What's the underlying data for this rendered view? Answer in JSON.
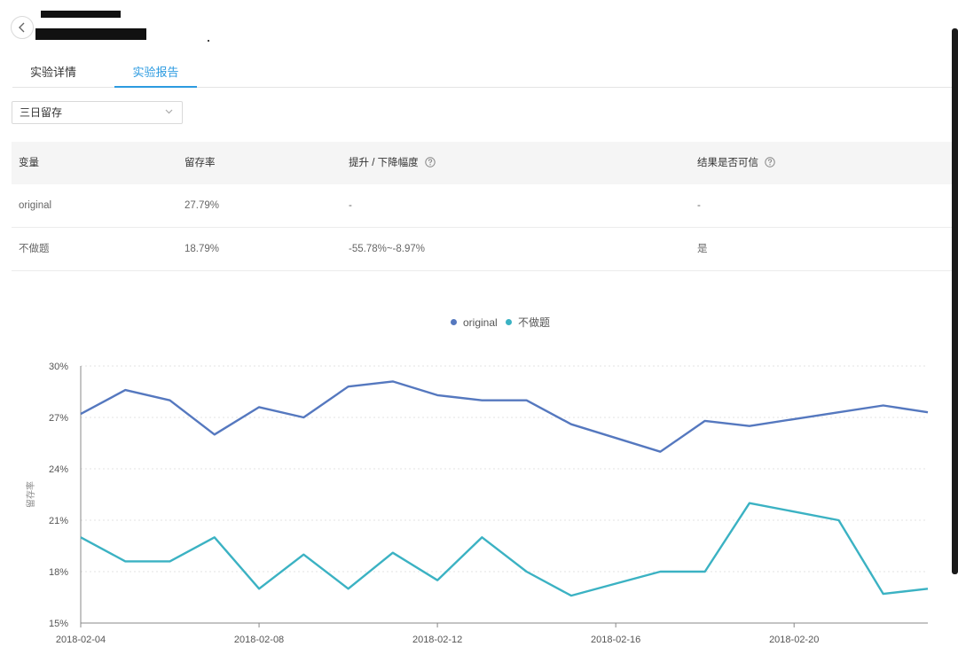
{
  "tabs": [
    {
      "label": "实验详情",
      "active": false
    },
    {
      "label": "实验报告",
      "active": true
    }
  ],
  "metric_select": {
    "value": "三日留存"
  },
  "table": {
    "headers": [
      "变量",
      "留存率",
      "提升 / 下降幅度",
      "结果是否可信"
    ],
    "rows": [
      [
        "original",
        "27.79%",
        "-",
        "-"
      ],
      [
        "不做题",
        "18.79%",
        "-55.78%~-8.97%",
        "是"
      ]
    ]
  },
  "colors": {
    "original": "#5578bf",
    "variant": "#3bb2c3",
    "accent": "#2d9be0"
  },
  "chart_data": {
    "type": "line",
    "ylabel": "留存率",
    "ylim": [
      15,
      30
    ],
    "yticks": [
      "15%",
      "18%",
      "21%",
      "24%",
      "27%",
      "30%"
    ],
    "xticks": [
      "2018-02-04",
      "2018-02-08",
      "2018-02-12",
      "2018-02-16",
      "2018-02-20"
    ],
    "x": [
      "2018-02-04",
      "2018-02-05",
      "2018-02-06",
      "2018-02-07",
      "2018-02-08",
      "2018-02-09",
      "2018-02-10",
      "2018-02-11",
      "2018-02-12",
      "2018-02-13",
      "2018-02-14",
      "2018-02-15",
      "2018-02-16",
      "2018-02-17",
      "2018-02-18",
      "2018-02-19",
      "2018-02-20",
      "2018-02-21",
      "2018-02-22",
      "2018-02-23"
    ],
    "series": [
      {
        "name": "original",
        "values": [
          27.2,
          28.6,
          28.0,
          26.0,
          27.6,
          27.0,
          28.8,
          29.1,
          28.3,
          28.0,
          28.0,
          26.6,
          25.8,
          25.0,
          26.8,
          26.5,
          26.9,
          27.3,
          27.7,
          27.3
        ]
      },
      {
        "name": "不做题",
        "values": [
          20.0,
          18.6,
          18.6,
          20.0,
          17.0,
          19.0,
          17.0,
          19.1,
          17.5,
          20.0,
          18.0,
          16.6,
          17.3,
          18.0,
          18.0,
          22.0,
          21.5,
          21.0,
          16.7,
          17.0
        ]
      }
    ],
    "legend_position": "top-center",
    "grid": true
  }
}
